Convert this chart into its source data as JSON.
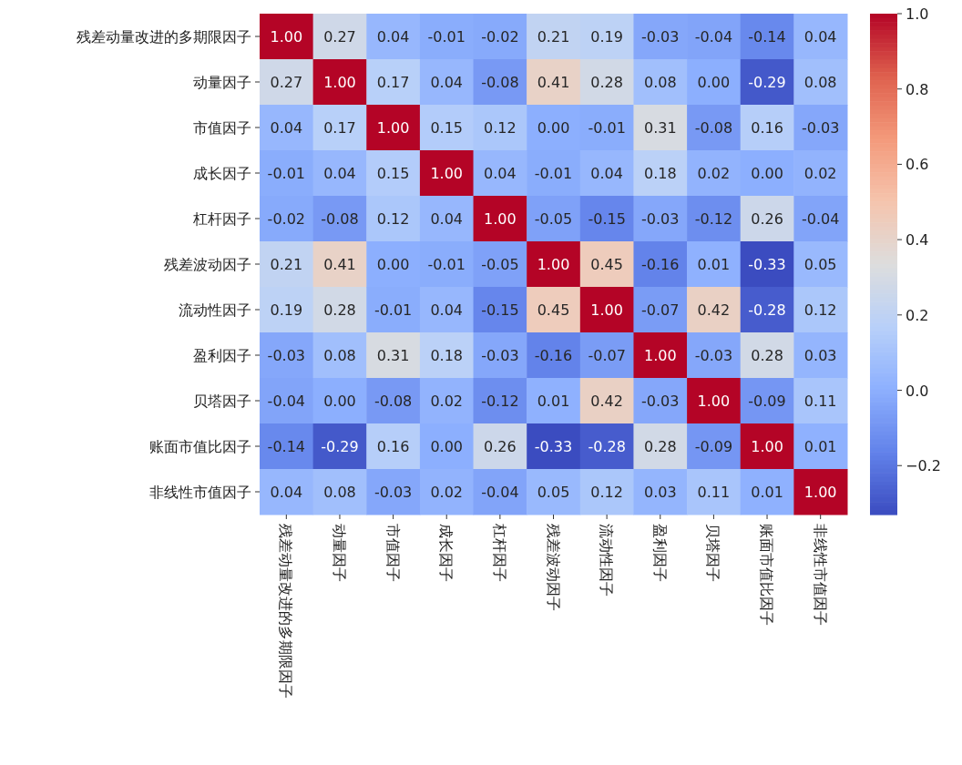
{
  "chart_data": {
    "type": "heatmap",
    "categories": [
      "残差动量改进的多期限因子",
      "动量因子",
      "市值因子",
      "成长因子",
      "杠杆因子",
      "残差波动因子",
      "流动性因子",
      "盈利因子",
      "贝塔因子",
      "账面市值比因子",
      "非线性市值因子"
    ],
    "y_categories": [
      "残差动量改进的多期限因子",
      "动量因子",
      "市值因子",
      "成长因子",
      "杠杆因子",
      "残差波动因子",
      "流动性因子",
      "盈利因子",
      "贝塔因子",
      "账面市值比因子",
      "非线性市值因子"
    ],
    "cells": [
      [
        1.0,
        0.27,
        0.04,
        -0.01,
        -0.02,
        0.21,
        0.19,
        -0.03,
        -0.04,
        -0.14,
        0.04
      ],
      [
        0.27,
        1.0,
        0.17,
        0.04,
        -0.08,
        0.41,
        0.28,
        0.08,
        0.0,
        -0.29,
        0.08
      ],
      [
        0.04,
        0.17,
        1.0,
        0.15,
        0.12,
        0.0,
        -0.01,
        0.31,
        -0.08,
        0.16,
        -0.03
      ],
      [
        -0.01,
        0.04,
        0.15,
        1.0,
        0.04,
        -0.01,
        0.04,
        0.18,
        0.02,
        0.0,
        0.02
      ],
      [
        -0.02,
        -0.08,
        0.12,
        0.04,
        1.0,
        -0.05,
        -0.15,
        -0.03,
        -0.12,
        0.26,
        -0.04
      ],
      [
        0.21,
        0.41,
        0.0,
        -0.01,
        -0.05,
        1.0,
        0.45,
        -0.16,
        0.01,
        -0.33,
        0.05
      ],
      [
        0.19,
        0.28,
        -0.01,
        0.04,
        -0.15,
        0.45,
        1.0,
        -0.07,
        0.42,
        -0.28,
        0.12
      ],
      [
        -0.03,
        0.08,
        0.31,
        0.18,
        -0.03,
        -0.16,
        -0.07,
        1.0,
        -0.03,
        0.28,
        0.03
      ],
      [
        -0.04,
        0.0,
        -0.08,
        0.02,
        -0.12,
        0.01,
        0.42,
        -0.03,
        1.0,
        -0.09,
        0.11
      ],
      [
        -0.14,
        -0.29,
        0.16,
        0.0,
        0.26,
        -0.33,
        -0.28,
        0.28,
        -0.09,
        1.0,
        0.01
      ],
      [
        0.04,
        0.08,
        -0.03,
        0.02,
        -0.04,
        0.05,
        0.12,
        0.03,
        0.11,
        0.01,
        1.0
      ]
    ],
    "cell_labels": [
      [
        "1.00",
        "0.27",
        "0.04",
        "-0.01",
        "-0.02",
        "0.21",
        "0.19",
        "-0.03",
        "-0.04",
        "-0.14",
        "0.04"
      ],
      [
        "0.27",
        "1.00",
        "0.17",
        "0.04",
        "-0.08",
        "0.41",
        "0.28",
        "0.08",
        "0.00",
        "-0.29",
        "0.08"
      ],
      [
        "0.04",
        "0.17",
        "1.00",
        "0.15",
        "0.12",
        "0.00",
        "-0.01",
        "0.31",
        "-0.08",
        "0.16",
        "-0.03"
      ],
      [
        "-0.01",
        "0.04",
        "0.15",
        "1.00",
        "0.04",
        "-0.01",
        "0.04",
        "0.18",
        "0.02",
        "0.00",
        "0.02"
      ],
      [
        "-0.02",
        "-0.08",
        "0.12",
        "0.04",
        "1.00",
        "-0.05",
        "-0.15",
        "-0.03",
        "-0.12",
        "0.26",
        "-0.04"
      ],
      [
        "0.21",
        "0.41",
        "0.00",
        "-0.01",
        "-0.05",
        "1.00",
        "0.45",
        "-0.16",
        "0.01",
        "-0.33",
        "0.05"
      ],
      [
        "0.19",
        "0.28",
        "-0.01",
        "0.04",
        "-0.15",
        "0.45",
        "1.00",
        "-0.07",
        "0.42",
        "-0.28",
        "0.12"
      ],
      [
        "-0.03",
        "0.08",
        "0.31",
        "0.18",
        "-0.03",
        "-0.16",
        "-0.07",
        "1.00",
        "-0.03",
        "0.28",
        "0.03"
      ],
      [
        "-0.04",
        "0.00",
        "-0.08",
        "0.02",
        "-0.12",
        "0.01",
        "0.42",
        "-0.03",
        "1.00",
        "-0.09",
        "0.11"
      ],
      [
        "-0.14",
        "-0.29",
        "0.16",
        "0.00",
        "0.26",
        "-0.33",
        "-0.28",
        "0.28",
        "-0.09",
        "1.00",
        "0.01"
      ],
      [
        "0.04",
        "0.08",
        "-0.03",
        "0.02",
        "-0.04",
        "0.05",
        "0.12",
        "0.03",
        "0.11",
        "0.01",
        "1.00"
      ]
    ],
    "clim": [
      -0.33,
      1.0
    ],
    "cticks": [
      {
        "value": -0.2,
        "label": "−0.2"
      },
      {
        "value": 0.0,
        "label": "0.0"
      },
      {
        "value": 0.2,
        "label": "0.2"
      },
      {
        "value": 0.4,
        "label": "0.4"
      },
      {
        "value": 0.6,
        "label": "0.6"
      },
      {
        "value": 0.8,
        "label": "0.8"
      },
      {
        "value": 1.0,
        "label": "1.0"
      }
    ]
  }
}
